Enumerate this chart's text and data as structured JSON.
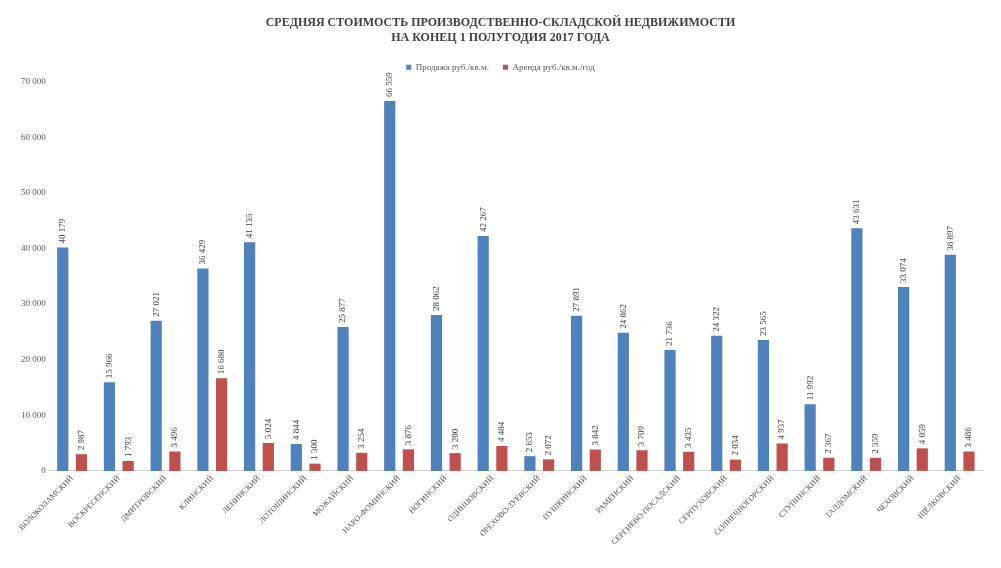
{
  "chart_data": {
    "type": "bar",
    "title": "СРЕДНЯЯ СТОИМОСТЬ ПРОИЗВОДСТВЕННО-СКЛАДСКОЙ НЕДВИЖИМОСТИ\nНА КОНЕЦ 1 ПОЛУГОДИЯ 2017 ГОДА",
    "categories": [
      "ВОЛОКОЛАМСКИЙ",
      "ВОСКРЕСЕНСКИЙ",
      "ДМИТРОВСКИЙ",
      "КЛИНСКИЙ",
      "ЛЕНИНСКИЙ",
      "ЛОТОШИНСКИЙ",
      "МОЖАЙСКИЙ",
      "НАРО-ФОМИНСКИЙ",
      "НОГИНСКИЙ",
      "ОДИНЦОВСКИЙ",
      "ОРЕХОВО-ЗУЕВСКИЙ",
      "ПУШКИНСКИЙ",
      "РАМЕНСКИЙ",
      "СЕРГИЕВО-ПОСАДСКИЙ",
      "СЕРПУХОВСКИЙ",
      "СОЛНЕЧНОГОРСКИЙ",
      "СТУПИНСКИЙ",
      "ТАЛДОМСКИЙ",
      "ЧЕХОВСКИЙ",
      "ЩЁЛКОВСКИЙ"
    ],
    "series": [
      {
        "name": "Продажа руб./кв.м.",
        "color": "#4f81bd",
        "values": [
          40179,
          15966,
          27021,
          36429,
          41135,
          4844,
          25877,
          66559,
          28062,
          42267,
          2653,
          27891,
          24862,
          21736,
          24322,
          23565,
          11992,
          43631,
          33074,
          38897
        ]
      },
      {
        "name": "Аренда руб./кв.м./год",
        "color": "#c0504d",
        "values": [
          2987,
          1793,
          3496,
          16680,
          5024,
          1300,
          3254,
          3876,
          3200,
          4484,
          2072,
          3842,
          3709,
          3435,
          2034,
          4937,
          2367,
          2359,
          4059,
          3486
        ]
      }
    ],
    "ylim": [
      0,
      70000
    ],
    "yticks": [
      {
        "value": 0,
        "label": "0"
      },
      {
        "value": 10000,
        "label": "10 000"
      },
      {
        "value": 20000,
        "label": "20 000"
      },
      {
        "value": 30000,
        "label": "30 000"
      },
      {
        "value": 40000,
        "label": "40 000"
      },
      {
        "value": 50000,
        "label": "50 000"
      },
      {
        "value": 60000,
        "label": "60 000"
      },
      {
        "value": 70000,
        "label": "70 000"
      }
    ],
    "legend": "top",
    "grid": false,
    "data_labels": true
  }
}
